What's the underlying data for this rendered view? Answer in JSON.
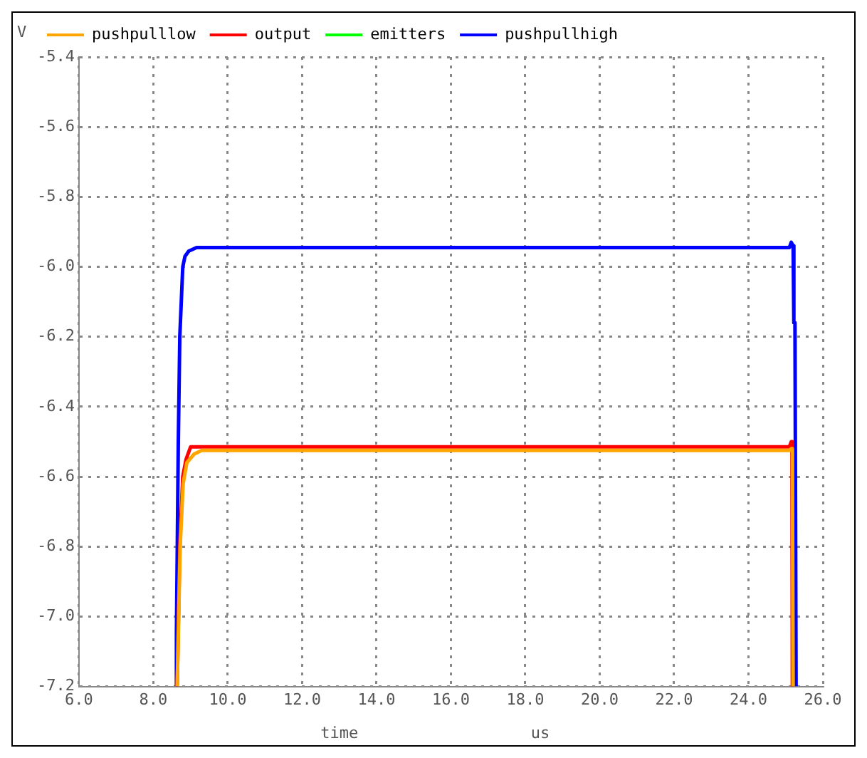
{
  "chart_data": {
    "type": "line",
    "ylabel": "V",
    "xlabel": "time",
    "annotations": [
      "us"
    ],
    "xlim": [
      6.0,
      26.0
    ],
    "xticks": [
      {
        "value": 6,
        "label": "6.0"
      },
      {
        "value": 8,
        "label": "8.0"
      },
      {
        "value": 10,
        "label": "10.0"
      },
      {
        "value": 12,
        "label": "12.0"
      },
      {
        "value": 14,
        "label": "14.0"
      },
      {
        "value": 16,
        "label": "16.0"
      },
      {
        "value": 18,
        "label": "18.0"
      },
      {
        "value": 20,
        "label": "20.0"
      },
      {
        "value": 22,
        "label": "22.0"
      },
      {
        "value": 24,
        "label": "24.0"
      },
      {
        "value": 26,
        "label": "26.0"
      }
    ],
    "ylim": [
      -7.2,
      -5.4
    ],
    "yticks": [
      -7.2,
      {
        "value": -7.0,
        "label": "-7.0"
      },
      -6.8,
      -6.6,
      -6.4,
      -6.2,
      {
        "value": -6.0,
        "label": "-6.0"
      },
      -5.8,
      -5.6,
      -5.4
    ],
    "grid": true,
    "legend": "top",
    "marker": "none",
    "line_style": "solid",
    "series": [
      {
        "name": "pushpulllow",
        "color": "#ffa500",
        "x": [
          8.64,
          8.72,
          8.8,
          8.9,
          9.1,
          9.3,
          25.1,
          25.15,
          25.18,
          25.2
        ],
        "values": [
          -7.2,
          -6.8,
          -6.62,
          -6.56,
          -6.535,
          -6.525,
          -6.525,
          -6.52,
          -6.52,
          -7.2
        ]
      },
      {
        "name": "output",
        "color": "#ff0000",
        "x": [
          8.64,
          8.71,
          8.79,
          8.88,
          9.0,
          25.1,
          25.15,
          25.17,
          25.18
        ],
        "values": [
          -7.2,
          -6.8,
          -6.6,
          -6.55,
          -6.515,
          -6.515,
          -6.5,
          -6.5,
          -7.2
        ]
      },
      {
        "name": "emitters",
        "color": "#00ff00"
      },
      {
        "name": "pushpullhigh",
        "color": "#0000ff",
        "x": [
          8.6,
          8.62,
          8.67,
          8.71,
          8.79,
          8.85,
          8.95,
          9.16,
          25.1,
          25.15,
          25.2,
          25.22,
          25.25,
          25.28
        ],
        "values": [
          -7.2,
          -7.05,
          -6.5,
          -6.2,
          -6.0,
          -5.97,
          -5.955,
          -5.945,
          -5.945,
          -5.93,
          -5.94,
          -6.16,
          -6.16,
          -7.2
        ]
      }
    ]
  }
}
